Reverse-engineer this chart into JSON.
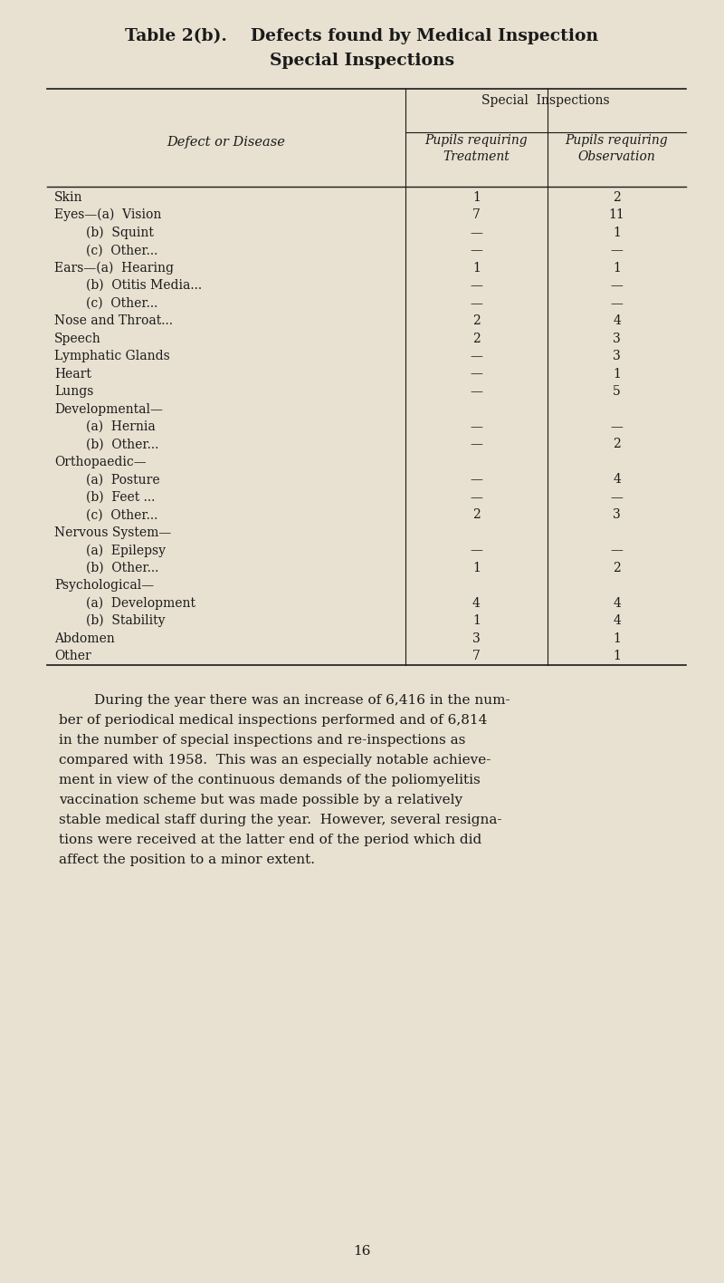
{
  "title_line1": "Table 2(b).    Defects found by Medical Inspection",
  "title_line2": "Special Inspections",
  "bg_color": "#e8e0d0",
  "header_special": "Special  Inspections",
  "col1_header": "Defect or Disease",
  "col2_header": "Pupils requiring\nTreatment",
  "col3_header": "Pupils requiring\nObservation",
  "rows": [
    [
      "Skin",
      "1",
      "2"
    ],
    [
      "Eyes—(a)  Vision",
      "7",
      "11"
    ],
    [
      "        (b)  Squint",
      "—",
      "1"
    ],
    [
      "        (c)  Other...",
      "—",
      "—"
    ],
    [
      "Ears—(a)  Hearing",
      "1",
      "1"
    ],
    [
      "        (b)  Otitis Media...",
      "—",
      "—"
    ],
    [
      "        (c)  Other...",
      "—",
      "—"
    ],
    [
      "Nose and Throat...",
      "2",
      "4"
    ],
    [
      "Speech",
      "2",
      "3"
    ],
    [
      "Lymphatic Glands",
      "—",
      "3"
    ],
    [
      "Heart",
      "—",
      "1"
    ],
    [
      "Lungs",
      "—",
      "5"
    ],
    [
      "Developmental—",
      "",
      ""
    ],
    [
      "        (a)  Hernia",
      "—",
      "—"
    ],
    [
      "        (b)  Other...",
      "—",
      "2"
    ],
    [
      "Orthopaedic—",
      "",
      ""
    ],
    [
      "        (a)  Posture",
      "—",
      "4"
    ],
    [
      "        (b)  Feet ...",
      "—",
      "—"
    ],
    [
      "        (c)  Other...",
      "2",
      "3"
    ],
    [
      "Nervous System—",
      "",
      ""
    ],
    [
      "        (a)  Epilepsy",
      "—",
      "—"
    ],
    [
      "        (b)  Other...",
      "1",
      "2"
    ],
    [
      "Psychological—",
      "",
      ""
    ],
    [
      "        (a)  Development",
      "4",
      "4"
    ],
    [
      "        (b)  Stability",
      "1",
      "4"
    ],
    [
      "Abdomen",
      "3",
      "1"
    ],
    [
      "Other",
      "7",
      "1"
    ]
  ],
  "paragraph_lines": [
    "        During the year there was an increase of 6,416 in the num-",
    "ber of periodical medical inspections performed and of 6,814",
    "in the number of special inspections and re-inspections as",
    "compared with 1958.  This was an especially notable achieve-",
    "ment in view of the continuous demands of the poliomyelitis",
    "vaccination scheme but was made possible by a relatively",
    "stable medical staff during the year.  However, several resigna-",
    "tions were received at the latter end of the period which did",
    "affect the position to a minor extent."
  ],
  "page_number": "16"
}
